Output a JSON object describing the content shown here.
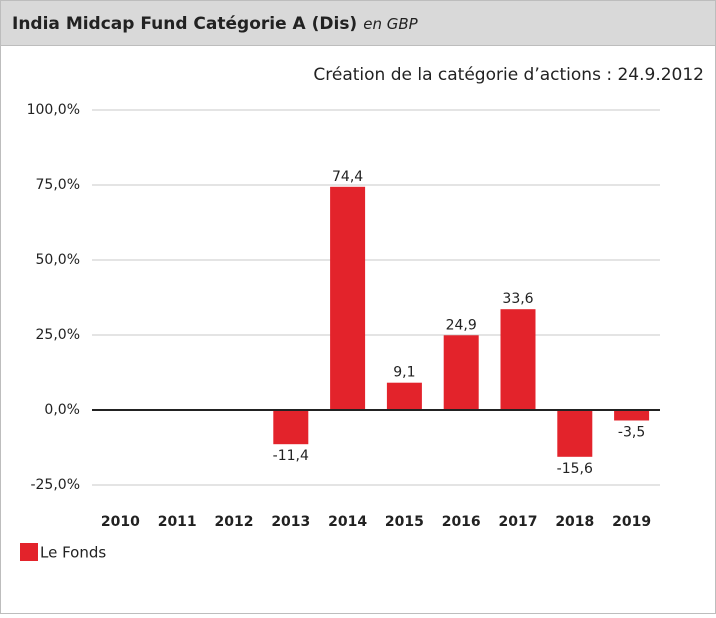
{
  "chart_data": {
    "type": "bar",
    "title": "India Midcap Fund Catégorie A (Dis)",
    "title_note": "en GBP",
    "subtitle": "Création de la catégorie d’actions : 24.9.2012",
    "categories": [
      "2010",
      "2011",
      "2012",
      "2013",
      "2014",
      "2015",
      "2016",
      "2017",
      "2018",
      "2019"
    ],
    "series": [
      {
        "name": "Le Fonds",
        "color": "#e3232b",
        "values": [
          null,
          null,
          null,
          -11.4,
          74.4,
          9.1,
          24.9,
          33.6,
          -15.6,
          -3.5
        ],
        "value_labels": [
          null,
          null,
          null,
          "-11,4",
          "74,4",
          "9,1",
          "24,9",
          "33,6",
          "-15,6",
          "-3,5"
        ]
      }
    ],
    "ylim": [
      -25,
      100
    ],
    "yticks": [
      {
        "value": -25,
        "label": "-25,0%"
      },
      {
        "value": 0,
        "label": "0,0%"
      },
      {
        "value": 25,
        "label": "25,0%"
      },
      {
        "value": 50,
        "label": "50,0%"
      },
      {
        "value": 75,
        "label": "75,0%"
      },
      {
        "value": 100,
        "label": "100,0%"
      }
    ],
    "grid": true
  }
}
